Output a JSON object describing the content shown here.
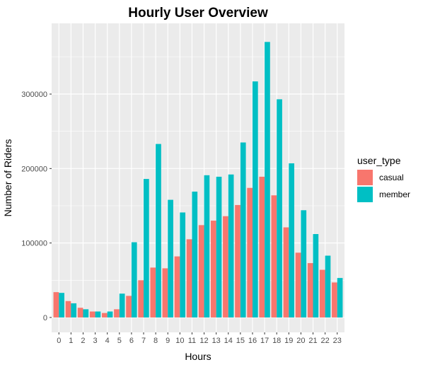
{
  "chart_data": {
    "type": "bar",
    "title": "Hourly User Overview",
    "xlabel": "Hours",
    "ylabel": "Number of Riders",
    "categories": [
      "0",
      "1",
      "2",
      "3",
      "4",
      "5",
      "6",
      "7",
      "8",
      "9",
      "10",
      "11",
      "12",
      "13",
      "14",
      "15",
      "16",
      "17",
      "18",
      "19",
      "20",
      "21",
      "22",
      "23"
    ],
    "series": [
      {
        "name": "casual",
        "color": "#F8766D",
        "values": [
          34000,
          22000,
          13000,
          8000,
          6000,
          11000,
          29000,
          50000,
          67000,
          66000,
          82000,
          105000,
          124000,
          130000,
          136000,
          151000,
          174000,
          189000,
          164000,
          121000,
          87000,
          73000,
          64000,
          47000
        ]
      },
      {
        "name": "member",
        "color": "#00BFC4",
        "values": [
          33000,
          19000,
          11000,
          8000,
          8000,
          32000,
          101000,
          186000,
          233000,
          158000,
          141000,
          169000,
          191000,
          189000,
          192000,
          235000,
          317000,
          370000,
          293000,
          207000,
          144000,
          112000,
          83000,
          53000
        ]
      }
    ],
    "ylim": [
      -20000,
      395000
    ],
    "yticks": [
      0,
      100000,
      200000,
      300000
    ],
    "ytick_labels": [
      "0",
      "100000",
      "200000",
      "300000"
    ],
    "grid": true,
    "panel_background": "#EBEBEB",
    "legend": {
      "title": "user_type",
      "position": "right"
    }
  }
}
